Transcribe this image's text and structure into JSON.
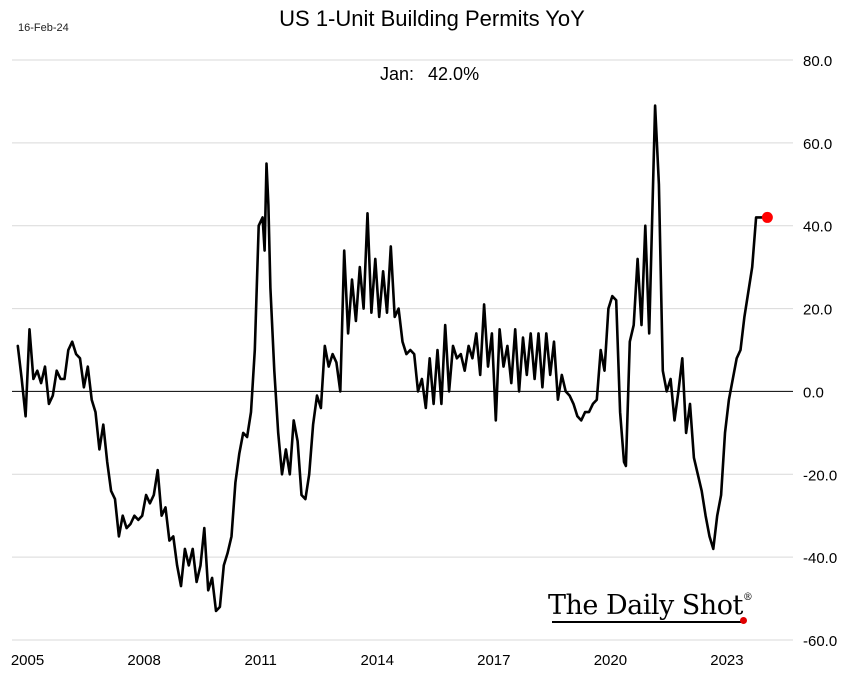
{
  "header": {
    "date_stamp": "16-Feb-24",
    "title": "US 1-Unit Building Permits YoY",
    "latest_label": "Jan:",
    "latest_value": "42.0%"
  },
  "branding": {
    "logo_text": "The Daily Shot",
    "logo_mark": "®"
  },
  "colors": {
    "line": "#000000",
    "marker": "#ff0000",
    "grid": "#d9d9d9",
    "zero_line": "#000000"
  },
  "chart_data": {
    "type": "line",
    "title": "US 1-Unit Building Permits YoY",
    "xlim": [
      2004.6,
      2024.7
    ],
    "ylim": [
      -60,
      80
    ],
    "x_ticks": [
      2005,
      2008,
      2011,
      2014,
      2017,
      2020,
      2023
    ],
    "x_tick_labels": [
      "2005",
      "2008",
      "2011",
      "2014",
      "2017",
      "2020",
      "2023"
    ],
    "y_ticks": [
      80,
      60,
      40,
      20,
      0,
      -20,
      -40,
      -60
    ],
    "y_tick_labels": [
      "80.0",
      "60.0",
      "40.0",
      "20.0",
      "0.0",
      "-20.0",
      "-40.0",
      "-60.0"
    ],
    "y_axis_side": "right",
    "grid": "horizontal",
    "zero_line": true,
    "highlight": {
      "x": 2024.04,
      "y": 42.0,
      "label": "Jan: 42.0%"
    },
    "series": [
      {
        "points": [
          [
            2004.75,
            11
          ],
          [
            2004.85,
            3
          ],
          [
            2004.95,
            -6
          ],
          [
            2005.05,
            15
          ],
          [
            2005.15,
            3
          ],
          [
            2005.25,
            5
          ],
          [
            2005.35,
            2
          ],
          [
            2005.45,
            6
          ],
          [
            2005.55,
            -3
          ],
          [
            2005.65,
            -1
          ],
          [
            2005.75,
            5
          ],
          [
            2005.85,
            3
          ],
          [
            2005.95,
            3
          ],
          [
            2006.05,
            10
          ],
          [
            2006.15,
            12
          ],
          [
            2006.25,
            9
          ],
          [
            2006.35,
            8
          ],
          [
            2006.45,
            1
          ],
          [
            2006.55,
            6
          ],
          [
            2006.65,
            -2
          ],
          [
            2006.75,
            -5
          ],
          [
            2006.85,
            -14
          ],
          [
            2006.95,
            -8
          ],
          [
            2007.05,
            -17
          ],
          [
            2007.15,
            -24
          ],
          [
            2007.25,
            -26
          ],
          [
            2007.35,
            -35
          ],
          [
            2007.45,
            -30
          ],
          [
            2007.55,
            -33
          ],
          [
            2007.65,
            -32
          ],
          [
            2007.75,
            -30
          ],
          [
            2007.85,
            -31
          ],
          [
            2007.95,
            -30
          ],
          [
            2008.05,
            -25
          ],
          [
            2008.15,
            -27
          ],
          [
            2008.25,
            -25
          ],
          [
            2008.35,
            -19
          ],
          [
            2008.45,
            -30
          ],
          [
            2008.55,
            -28
          ],
          [
            2008.65,
            -36
          ],
          [
            2008.75,
            -35
          ],
          [
            2008.85,
            -42
          ],
          [
            2008.95,
            -47
          ],
          [
            2009.05,
            -38
          ],
          [
            2009.15,
            -42
          ],
          [
            2009.25,
            -38
          ],
          [
            2009.35,
            -46
          ],
          [
            2009.45,
            -42
          ],
          [
            2009.55,
            -33
          ],
          [
            2009.65,
            -48
          ],
          [
            2009.75,
            -45
          ],
          [
            2009.85,
            -53
          ],
          [
            2009.95,
            -52
          ],
          [
            2010.05,
            -42
          ],
          [
            2010.15,
            -39
          ],
          [
            2010.25,
            -35
          ],
          [
            2010.35,
            -22
          ],
          [
            2010.45,
            -15
          ],
          [
            2010.55,
            -10
          ],
          [
            2010.65,
            -11
          ],
          [
            2010.75,
            -5
          ],
          [
            2010.85,
            10
          ],
          [
            2010.95,
            40
          ],
          [
            2011.05,
            42
          ],
          [
            2011.1,
            34
          ],
          [
            2011.15,
            55
          ],
          [
            2011.2,
            45
          ],
          [
            2011.25,
            25
          ],
          [
            2011.35,
            5
          ],
          [
            2011.45,
            -10
          ],
          [
            2011.55,
            -20
          ],
          [
            2011.65,
            -14
          ],
          [
            2011.75,
            -20
          ],
          [
            2011.85,
            -7
          ],
          [
            2011.95,
            -12
          ],
          [
            2012.05,
            -25
          ],
          [
            2012.15,
            -26
          ],
          [
            2012.25,
            -20
          ],
          [
            2012.35,
            -8
          ],
          [
            2012.45,
            -1
          ],
          [
            2012.55,
            -4
          ],
          [
            2012.65,
            11
          ],
          [
            2012.75,
            6
          ],
          [
            2012.85,
            9
          ],
          [
            2012.95,
            7
          ],
          [
            2013.05,
            0
          ],
          [
            2013.15,
            34
          ],
          [
            2013.25,
            14
          ],
          [
            2013.35,
            27
          ],
          [
            2013.45,
            17
          ],
          [
            2013.55,
            30
          ],
          [
            2013.65,
            20
          ],
          [
            2013.75,
            43
          ],
          [
            2013.85,
            19
          ],
          [
            2013.95,
            32
          ],
          [
            2014.05,
            18
          ],
          [
            2014.15,
            29
          ],
          [
            2014.25,
            19
          ],
          [
            2014.35,
            35
          ],
          [
            2014.45,
            18
          ],
          [
            2014.55,
            20
          ],
          [
            2014.65,
            12
          ],
          [
            2014.75,
            9
          ],
          [
            2014.85,
            10
          ],
          [
            2014.95,
            9
          ],
          [
            2015.05,
            0
          ],
          [
            2015.15,
            3
          ],
          [
            2015.25,
            -4
          ],
          [
            2015.35,
            8
          ],
          [
            2015.45,
            -3
          ],
          [
            2015.55,
            10
          ],
          [
            2015.65,
            -3
          ],
          [
            2015.75,
            16
          ],
          [
            2015.85,
            0
          ],
          [
            2015.95,
            11
          ],
          [
            2016.05,
            8
          ],
          [
            2016.15,
            9
          ],
          [
            2016.25,
            5
          ],
          [
            2016.35,
            11
          ],
          [
            2016.45,
            8
          ],
          [
            2016.55,
            14
          ],
          [
            2016.65,
            4
          ],
          [
            2016.75,
            21
          ],
          [
            2016.85,
            6
          ],
          [
            2016.95,
            14
          ],
          [
            2017.05,
            -7
          ],
          [
            2017.15,
            15
          ],
          [
            2017.25,
            6
          ],
          [
            2017.35,
            11
          ],
          [
            2017.45,
            2
          ],
          [
            2017.55,
            15
          ],
          [
            2017.65,
            0
          ],
          [
            2017.75,
            13
          ],
          [
            2017.85,
            4
          ],
          [
            2017.95,
            14
          ],
          [
            2018.05,
            3
          ],
          [
            2018.15,
            14
          ],
          [
            2018.25,
            1
          ],
          [
            2018.35,
            14
          ],
          [
            2018.45,
            4
          ],
          [
            2018.55,
            12
          ],
          [
            2018.65,
            -2
          ],
          [
            2018.75,
            4
          ],
          [
            2018.85,
            0
          ],
          [
            2018.95,
            -1
          ],
          [
            2019.05,
            -3
          ],
          [
            2019.15,
            -6
          ],
          [
            2019.25,
            -7
          ],
          [
            2019.35,
            -5
          ],
          [
            2019.45,
            -5
          ],
          [
            2019.55,
            -3
          ],
          [
            2019.65,
            -2
          ],
          [
            2019.75,
            10
          ],
          [
            2019.85,
            5
          ],
          [
            2019.95,
            20
          ],
          [
            2020.05,
            23
          ],
          [
            2020.15,
            22
          ],
          [
            2020.25,
            -5
          ],
          [
            2020.35,
            -17
          ],
          [
            2020.4,
            -18
          ],
          [
            2020.5,
            12
          ],
          [
            2020.6,
            16
          ],
          [
            2020.7,
            32
          ],
          [
            2020.8,
            16
          ],
          [
            2020.9,
            40
          ],
          [
            2021.0,
            14
          ],
          [
            2021.15,
            69
          ],
          [
            2021.25,
            50
          ],
          [
            2021.35,
            5
          ],
          [
            2021.45,
            0
          ],
          [
            2021.55,
            3
          ],
          [
            2021.65,
            -7
          ],
          [
            2021.75,
            0
          ],
          [
            2021.85,
            8
          ],
          [
            2021.95,
            -10
          ],
          [
            2022.05,
            -3
          ],
          [
            2022.15,
            -16
          ],
          [
            2022.25,
            -20
          ],
          [
            2022.35,
            -24
          ],
          [
            2022.45,
            -30
          ],
          [
            2022.55,
            -35
          ],
          [
            2022.65,
            -38
          ],
          [
            2022.75,
            -30
          ],
          [
            2022.85,
            -25
          ],
          [
            2022.95,
            -10
          ],
          [
            2023.05,
            -2
          ],
          [
            2023.15,
            3
          ],
          [
            2023.25,
            8
          ],
          [
            2023.35,
            10
          ],
          [
            2023.45,
            18
          ],
          [
            2023.55,
            24
          ],
          [
            2023.65,
            30
          ],
          [
            2023.75,
            42
          ],
          [
            2024.04,
            42
          ]
        ]
      }
    ]
  }
}
